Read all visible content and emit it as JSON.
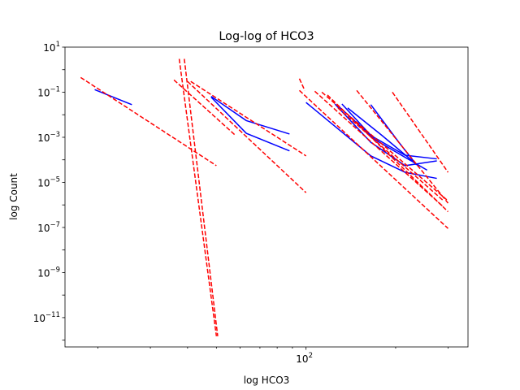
{
  "chart_data": {
    "type": "line",
    "title": "Log-log of HCO3",
    "xlabel": "log HCO3",
    "ylabel": "log Count",
    "xscale": "log",
    "yscale": "log",
    "xlim": [
      15.5,
      350
    ],
    "ylim": [
      5e-13,
      10
    ],
    "grid": false,
    "x_tick_labels": [
      {
        "value": 100,
        "label": "10^2"
      }
    ],
    "y_tick_labels": [
      {
        "value": 10,
        "label": "10^1"
      },
      {
        "value": 0.1,
        "label": "10^-1"
      },
      {
        "value": 0.001,
        "label": "10^-3"
      },
      {
        "value": 1e-05,
        "label": "10^-5"
      },
      {
        "value": 1e-07,
        "label": "10^-7"
      },
      {
        "value": 1e-09,
        "label": "10^-9"
      },
      {
        "value": 1e-11,
        "label": "10^-11"
      }
    ],
    "series_colors": {
      "fit": "#ff0000",
      "data": "#0000ff"
    },
    "series": [
      {
        "style": "solid",
        "color": "#0000ff",
        "x": [
          19.5,
          26
        ],
        "y": [
          0.13,
          0.028
        ]
      },
      {
        "style": "solid",
        "color": "#0000ff",
        "x": [
          48,
          63,
          88
        ],
        "y": [
          0.065,
          0.0055,
          0.0014
        ]
      },
      {
        "style": "solid",
        "color": "#0000ff",
        "x": [
          48,
          63,
          88
        ],
        "y": [
          0.06,
          0.0015,
          0.00025
        ]
      },
      {
        "style": "solid",
        "color": "#0000ff",
        "x": [
          100,
          165,
          215,
          275
        ],
        "y": [
          0.035,
          0.00015,
          2.8e-05,
          1.5e-05
        ]
      },
      {
        "style": "solid",
        "color": "#0000ff",
        "x": [
          125,
          165,
          215,
          275
        ],
        "y": [
          0.03,
          0.0006,
          5.5e-05,
          9e-05
        ]
      },
      {
        "style": "solid",
        "color": "#0000ff",
        "x": [
          128,
          165,
          215,
          275
        ],
        "y": [
          0.025,
          0.0012,
          0.00016,
          0.00011
        ]
      },
      {
        "style": "solid",
        "color": "#0000ff",
        "x": [
          132,
          170,
          215,
          255
        ],
        "y": [
          0.03,
          0.0008,
          0.00013,
          3.5e-05
        ]
      },
      {
        "style": "solid",
        "color": "#0000ff",
        "x": [
          138,
          180,
          240
        ],
        "y": [
          0.02,
          0.0012,
          5e-05
        ]
      },
      {
        "style": "solid",
        "color": "#0000ff",
        "x": [
          165,
          205,
          235
        ],
        "y": [
          0.028,
          0.0006,
          6e-05
        ]
      },
      {
        "style": "dashed",
        "color": "#ff0000",
        "x": [
          17.5,
          50
        ],
        "y": [
          0.45,
          5.5e-05
        ]
      },
      {
        "style": "dashed",
        "color": "#ff0000",
        "x": [
          37.5,
          50
        ],
        "y": [
          3,
          1.5e-12
        ]
      },
      {
        "style": "dashed",
        "color": "#ff0000",
        "x": [
          39,
          50.5
        ],
        "y": [
          3,
          1.5e-12
        ]
      },
      {
        "style": "dashed",
        "color": "#ff0000",
        "x": [
          36,
          58
        ],
        "y": [
          0.35,
          0.0012
        ]
      },
      {
        "style": "dashed",
        "color": "#ff0000",
        "x": [
          41,
          100
        ],
        "y": [
          0.3,
          0.00015
        ]
      },
      {
        "style": "dashed",
        "color": "#ff0000",
        "x": [
          40,
          100
        ],
        "y": [
          0.3,
          3.5e-06
        ]
      },
      {
        "style": "dashed",
        "color": "#ff0000",
        "x": [
          95,
          99
        ],
        "y": [
          0.4,
          0.12
        ]
      },
      {
        "style": "dashed",
        "color": "#ff0000",
        "x": [
          95,
          300
        ],
        "y": [
          0.12,
          9e-08
        ]
      },
      {
        "style": "dashed",
        "color": "#ff0000",
        "x": [
          107,
          290
        ],
        "y": [
          0.11,
          8e-07
        ]
      },
      {
        "style": "dashed",
        "color": "#ff0000",
        "x": [
          113,
          300
        ],
        "y": [
          0.1,
          1.5e-06
        ]
      },
      {
        "style": "dashed",
        "color": "#ff0000",
        "x": [
          118,
          300
        ],
        "y": [
          0.075,
          5e-07
        ]
      },
      {
        "style": "dashed",
        "color": "#ff0000",
        "x": [
          148,
          300
        ],
        "y": [
          0.12,
          1.2e-06
        ]
      },
      {
        "style": "dashed",
        "color": "#ff0000",
        "x": [
          195,
          300
        ],
        "y": [
          0.1,
          2.8e-05
        ]
      },
      {
        "style": "dashed",
        "color": "#ff0000",
        "x": [
          128,
          290
        ],
        "y": [
          0.02,
          1.5e-06
        ]
      }
    ]
  }
}
